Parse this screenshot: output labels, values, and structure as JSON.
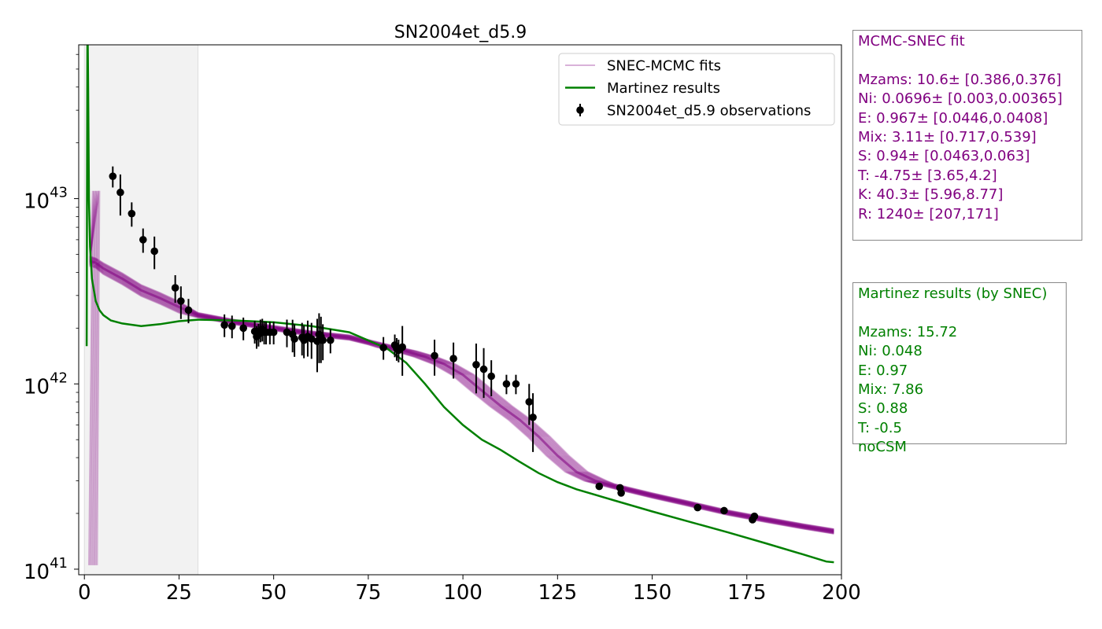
{
  "colors": {
    "mcmc": "#800080",
    "martinez": "#008000",
    "observations": "#000000",
    "shade": "#f2f2f2"
  },
  "chart_data": {
    "type": "line",
    "title": "SN2004et_d5.9",
    "xlabel": "",
    "ylabel": "",
    "xlim": [
      -1.5,
      200
    ],
    "ylim_log10": [
      40.97,
      43.83
    ],
    "yscale": "log",
    "xticks": [
      0,
      25,
      50,
      75,
      100,
      125,
      150,
      175,
      200
    ],
    "yticks": [
      {
        "value": 1e+41,
        "base": "10",
        "exp": "41"
      },
      {
        "value": 1e+42,
        "base": "10",
        "exp": "42"
      },
      {
        "value": 1e+43,
        "base": "10",
        "exp": "43"
      }
    ],
    "shaded_region": [
      0,
      30
    ],
    "legend": {
      "position": "top-right",
      "entries": [
        {
          "label": "SNEC-MCMC fits",
          "kind": "line-faint"
        },
        {
          "label": "Martinez results",
          "kind": "line"
        },
        {
          "label": "SN2004et_d5.9 observations",
          "kind": "errorbar"
        }
      ]
    },
    "series": [
      {
        "name": "Martinez results",
        "x": [
          0.6,
          0.8,
          1.0,
          1.2,
          1.5,
          2.0,
          3,
          4,
          5,
          7,
          10,
          15,
          20,
          25,
          30,
          40,
          50,
          60,
          70,
          80,
          85,
          90,
          95,
          100,
          105,
          110,
          115,
          120,
          125,
          130,
          140,
          150,
          160,
          170,
          180,
          190,
          196,
          198
        ],
        "y": [
          1.6e+42,
          1e+44,
          4e+43,
          1e+43,
          5.5e+42,
          3.7e+42,
          2.8e+42,
          2.5e+42,
          2.35e+42,
          2.2e+42,
          2.12e+42,
          2.05e+42,
          2.1e+42,
          2.18e+42,
          2.22e+42,
          2.2e+42,
          2.15e+42,
          2.05e+42,
          1.9e+42,
          1.55e+42,
          1.3e+42,
          1e+42,
          7.5e+41,
          6e+41,
          5e+41,
          4.4e+41,
          3.8e+41,
          3.3e+41,
          2.95e+41,
          2.7e+41,
          2.35e+41,
          2.05e+41,
          1.8e+41,
          1.58e+41,
          1.38e+41,
          1.2e+41,
          1.1e+41,
          1.09e+41
        ]
      },
      {
        "name": "",
        "role": "mcmc-median",
        "x": [
          1.5,
          3,
          5,
          10,
          15,
          20,
          25,
          30,
          40,
          50,
          60,
          70,
          75,
          80,
          85,
          90,
          95,
          100,
          105,
          110,
          115,
          120,
          125,
          130,
          135,
          140,
          150,
          160,
          170,
          180,
          190,
          198
        ],
        "y": [
          4.6e+42,
          4.5e+42,
          4.2e+42,
          3.7e+42,
          3.2e+42,
          2.9e+42,
          2.6e+42,
          2.35e+42,
          2.15e+42,
          2e+42,
          1.87e+42,
          1.78e+42,
          1.68e+42,
          1.58e+42,
          1.5e+42,
          1.4e+42,
          1.28e+42,
          1.12e+42,
          9.2e+41,
          7.6e+41,
          6.4e+41,
          5.2e+41,
          4.1e+41,
          3.35e+41,
          3e+41,
          2.8e+41,
          2.5e+41,
          2.25e+41,
          2.02e+41,
          1.85e+41,
          1.7e+41,
          1.6e+41
        ]
      }
    ],
    "observations": {
      "x": [
        7.5,
        9.5,
        12.5,
        15.5,
        18.5,
        24,
        25.5,
        27.5,
        37,
        39,
        42,
        45,
        45.5,
        46,
        46.5,
        47,
        47.5,
        48,
        49,
        50,
        53.5,
        55,
        55.5,
        57.5,
        58,
        59,
        60,
        61.5,
        62,
        62.5,
        63,
        65,
        79,
        82,
        82.5,
        83,
        84,
        92.5,
        97.5,
        103.5,
        105.5,
        107.5,
        111.5,
        114,
        117.5,
        118.5,
        136,
        141.5,
        141.8,
        162,
        169,
        176.5,
        177
      ],
      "y": [
        1.32e+43,
        1.08e+43,
        8.3e+42,
        6e+42,
        5.2e+42,
        3.3e+42,
        2.8e+42,
        2.5e+42,
        2.08e+42,
        2.05e+42,
        2e+42,
        1.92e+42,
        1.8e+42,
        1.85e+42,
        1.95e+42,
        1.97e+42,
        1.9e+42,
        1.9e+42,
        1.9e+42,
        1.9e+42,
        1.9e+42,
        1.85e+42,
        1.75e+42,
        1.78e+42,
        1.72e+42,
        1.8e+42,
        1.75e+42,
        1.7e+42,
        1.85e+42,
        1.8e+42,
        1.72e+42,
        1.72e+42,
        1.57e+42,
        1.62e+42,
        1.55e+42,
        1.52e+42,
        1.58e+42,
        1.42e+42,
        1.37e+42,
        1.27e+42,
        1.2e+42,
        1.1e+42,
        1e+42,
        1e+42,
        8e+41,
        6.6e+41,
        2.8e+41,
        2.75e+41,
        2.58e+41,
        2.15e+41,
        2.07e+41,
        1.85e+41,
        1.93e+41
      ],
      "yerr_frac": [
        0.13,
        0.25,
        0.15,
        0.15,
        0.2,
        0.17,
        0.2,
        0.15,
        0.14,
        0.14,
        0.14,
        0.14,
        0.14,
        0.14,
        0.14,
        0.14,
        0.14,
        0.14,
        0.14,
        0.14,
        0.17,
        0.2,
        0.2,
        0.2,
        0.2,
        0.22,
        0.22,
        0.32,
        0.3,
        0.28,
        0.22,
        0.15,
        0.14,
        0.14,
        0.14,
        0.14,
        0.3,
        0.22,
        0.22,
        0.3,
        0.3,
        0.22,
        0.12,
        0.12,
        0.25,
        0.35,
        0.02,
        0.02,
        0.02,
        0.02,
        0.02,
        0.02,
        0.02
      ]
    }
  },
  "mcmc_box": {
    "title": "MCMC-SNEC fit",
    "lines": [
      "Mzams: 10.6± [0.386,0.376]",
      "Ni: 0.0696± [0.003,0.00365]",
      "E: 0.967± [0.0446,0.0408]",
      "Mix: 3.11± [0.717,0.539]",
      "S: 0.94± [0.0463,0.063]",
      "T: -4.75± [3.65,4.2]",
      "K: 40.3± [5.96,8.77]",
      "R: 1240± [207,171]"
    ]
  },
  "martinez_box": {
    "title": "Martinez results (by SNEC)",
    "lines": [
      "Mzams: 15.72",
      "Ni: 0.048",
      "E: 0.97",
      "Mix: 7.86",
      "S: 0.88",
      "T: -0.5",
      "noCSM"
    ]
  }
}
